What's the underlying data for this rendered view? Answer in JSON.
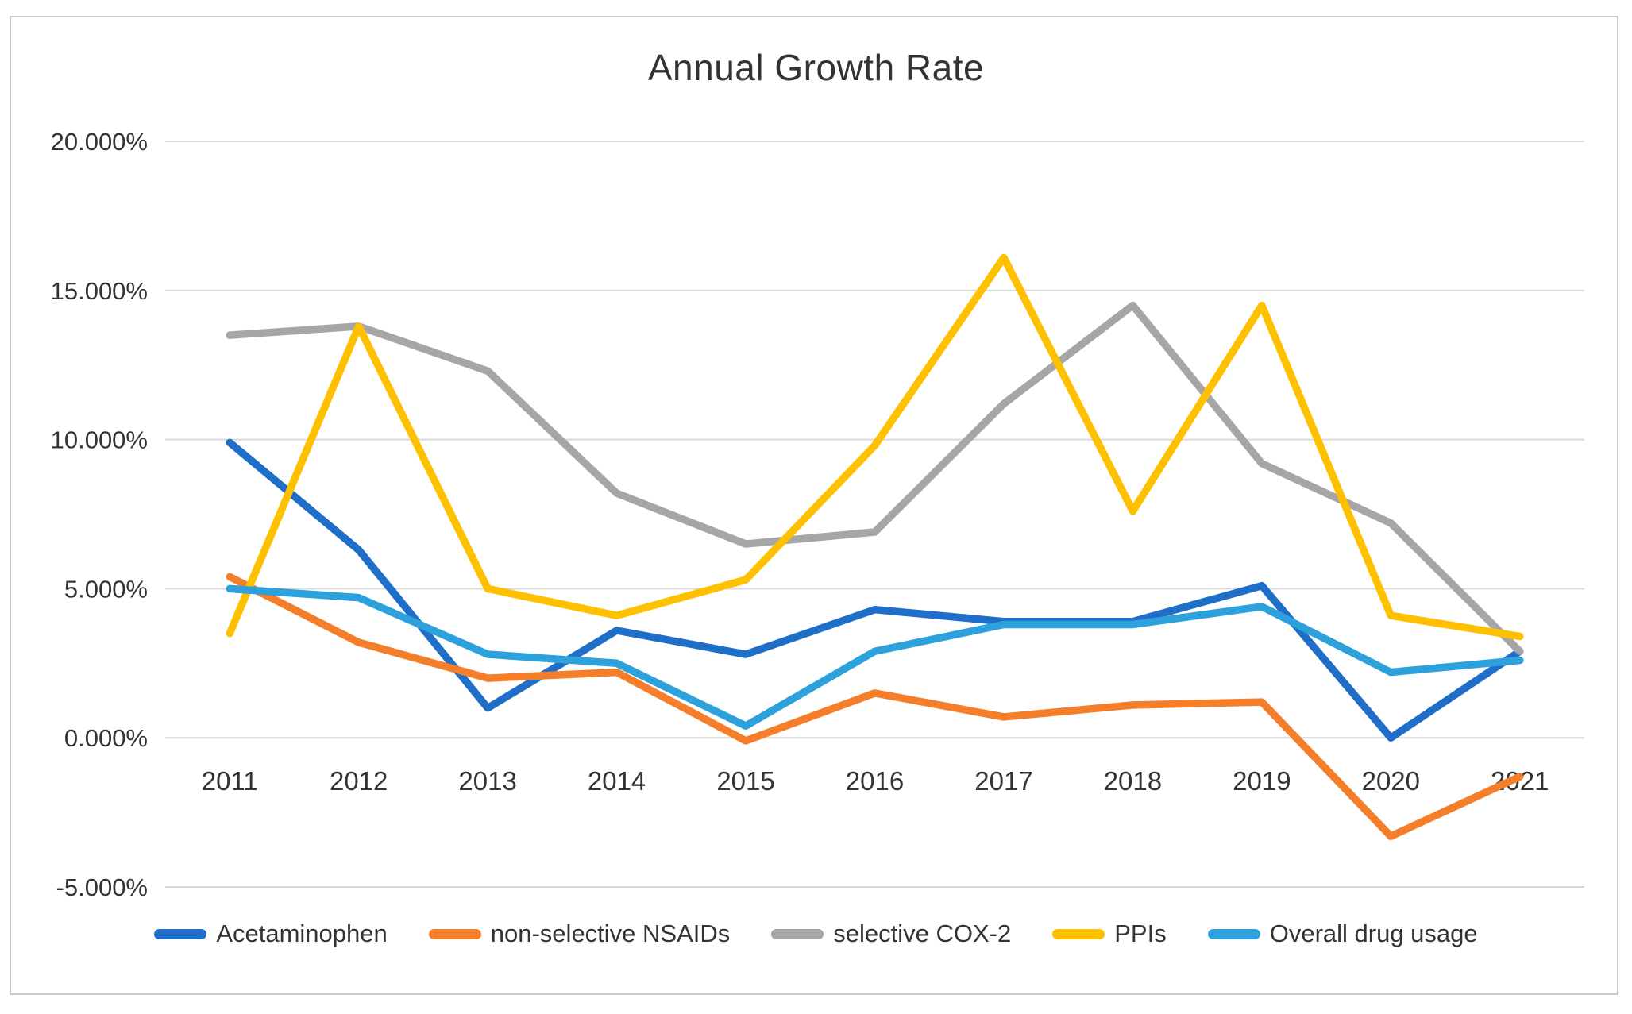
{
  "figure": {
    "background": "#ffffff",
    "border_color": "#c8c8c8"
  },
  "chart_data": {
    "type": "line",
    "title": "Annual Growth Rate",
    "categories": [
      "2011",
      "2012",
      "2013",
      "2014",
      "2015",
      "2016",
      "2017",
      "2018",
      "2019",
      "2020",
      "2021"
    ],
    "series": [
      {
        "name": "Acetaminophen",
        "color": "#1F6EC8",
        "values": [
          9.9,
          6.3,
          1.0,
          3.6,
          2.8,
          4.3,
          3.9,
          3.9,
          5.1,
          0.0,
          2.9
        ]
      },
      {
        "name": "non-selective NSAIDs",
        "color": "#F57E2A",
        "values": [
          5.4,
          3.2,
          2.0,
          2.2,
          -0.1,
          1.5,
          0.7,
          1.1,
          1.2,
          -3.3,
          -1.3
        ]
      },
      {
        "name": "selective COX-2",
        "color": "#A6A6A6",
        "values": [
          13.5,
          13.8,
          12.3,
          8.2,
          6.5,
          6.9,
          11.2,
          14.5,
          9.2,
          7.2,
          2.9
        ]
      },
      {
        "name": "PPIs",
        "color": "#FFC000",
        "values": [
          3.5,
          13.8,
          5.0,
          4.1,
          5.3,
          9.8,
          16.1,
          7.6,
          14.5,
          4.1,
          3.4
        ]
      },
      {
        "name": "Overall drug usage",
        "color": "#2CA1DB",
        "values": [
          5.0,
          4.7,
          2.8,
          2.5,
          0.4,
          2.9,
          3.8,
          3.8,
          4.4,
          2.2,
          2.6
        ]
      }
    ],
    "ylim": [
      -5,
      20
    ],
    "yticks": [
      {
        "value": 20,
        "label": "20.000%"
      },
      {
        "value": 15,
        "label": "15.000%"
      },
      {
        "value": 10,
        "label": "10.000%"
      },
      {
        "value": 5,
        "label": "5.000%"
      },
      {
        "value": 0,
        "label": "0.000%"
      },
      {
        "value": -5,
        "label": "-5.000%"
      }
    ],
    "grid": true,
    "gridline_color": "#D9D9D9",
    "legend_position": "bottom"
  }
}
